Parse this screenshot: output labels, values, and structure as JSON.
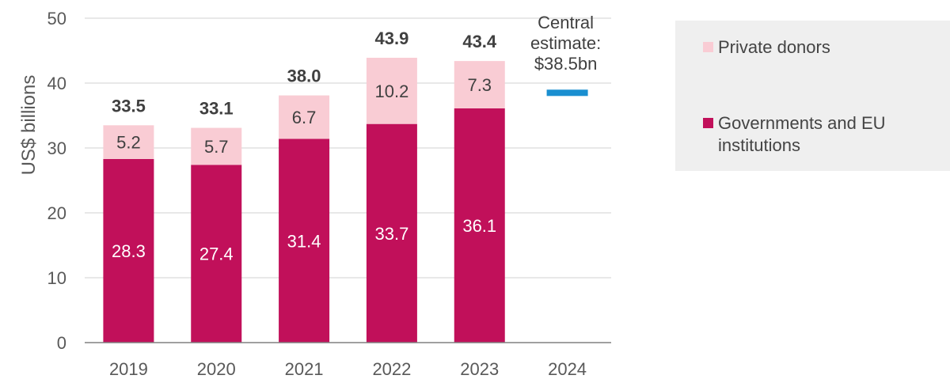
{
  "chart_data": {
    "type": "bar",
    "stacked": true,
    "ylabel": "US$ billions",
    "ylim": [
      0,
      50
    ],
    "yticks": [
      0,
      10,
      20,
      30,
      40,
      50
    ],
    "categories": [
      "2019",
      "2020",
      "2021",
      "2022",
      "2023",
      "2024"
    ],
    "series": [
      {
        "name": "Governments and EU institutions",
        "color": "#c1105a",
        "values": [
          28.3,
          27.4,
          31.4,
          33.7,
          36.1,
          null
        ]
      },
      {
        "name": "Private donors",
        "color": "#f9ccd4",
        "values": [
          5.2,
          5.7,
          6.7,
          10.2,
          7.3,
          null
        ]
      }
    ],
    "totals": [
      "33.5",
      "33.1",
      "38.0",
      "43.9",
      "43.4",
      null
    ],
    "estimate": {
      "category": "2024",
      "value": 38.5,
      "color": "#1a8fd0",
      "label_lines": [
        "Central",
        "estimate:",
        "$38.5bn"
      ]
    },
    "grid": true,
    "legend_position": "right"
  },
  "legend": {
    "private": {
      "label": "Private donors",
      "color": "#f9ccd4"
    },
    "government": {
      "label": "Governments and EU institutions",
      "color": "#c1105a"
    }
  }
}
